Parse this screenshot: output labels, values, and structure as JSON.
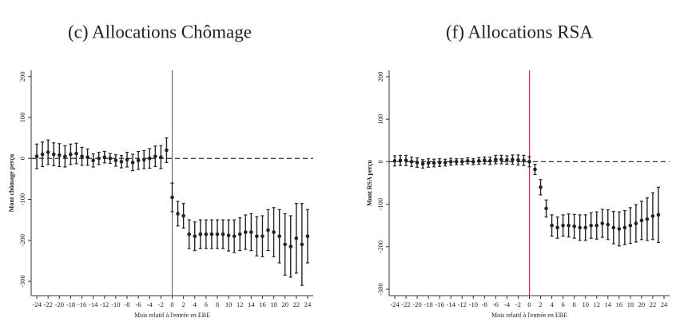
{
  "chart_data": [
    {
      "type": "scatter",
      "title": "(c) Allocations Chômage",
      "xlabel": "Mois relatif à l'entrée en EBE",
      "ylabel": "Mont chômage perçu",
      "x": [
        -24,
        -23,
        -22,
        -21,
        -20,
        -19,
        -18,
        -17,
        -16,
        -15,
        -14,
        -13,
        -12,
        -11,
        -10,
        -9,
        -8,
        -7,
        -6,
        -5,
        -4,
        -3,
        -2,
        -1,
        0,
        1,
        2,
        3,
        4,
        5,
        6,
        7,
        8,
        9,
        10,
        11,
        12,
        13,
        14,
        15,
        16,
        17,
        18,
        19,
        20,
        21,
        22,
        23,
        24
      ],
      "values": [
        5,
        10,
        15,
        10,
        8,
        5,
        10,
        12,
        5,
        3,
        -5,
        0,
        3,
        0,
        -5,
        -8,
        -3,
        -10,
        -5,
        -3,
        0,
        5,
        3,
        20,
        -95,
        -135,
        -140,
        -185,
        -190,
        -185,
        -185,
        -185,
        -185,
        -185,
        -188,
        -190,
        -185,
        -180,
        -180,
        -190,
        -190,
        -175,
        -180,
        -190,
        -210,
        -215,
        -195,
        -210,
        -190
      ],
      "errors": [
        30,
        30,
        30,
        28,
        28,
        26,
        25,
        25,
        22,
        20,
        16,
        15,
        14,
        12,
        14,
        15,
        18,
        20,
        22,
        22,
        24,
        25,
        28,
        30,
        35,
        30,
        30,
        35,
        35,
        35,
        35,
        35,
        35,
        35,
        38,
        40,
        40,
        42,
        45,
        48,
        50,
        50,
        60,
        65,
        75,
        75,
        85,
        100,
        65
      ],
      "color": "#222222",
      "xlim": [
        -25,
        25
      ],
      "xticks": [
        -24,
        -22,
        -20,
        -18,
        -16,
        -14,
        -12,
        -10,
        -8,
        -6,
        -4,
        -2,
        0,
        2,
        4,
        6,
        8,
        10,
        12,
        14,
        16,
        18,
        20,
        22,
        24
      ],
      "ylim": [
        -335,
        215
      ],
      "yticks": [
        200,
        100,
        0,
        -100,
        -200,
        -300
      ],
      "hline": 0,
      "vline": 0,
      "vline_color": "#d9243a"
    },
    {
      "type": "scatter",
      "title": "(f) Allocations RSA",
      "xlabel": "Mois relatif à l'entrée en EBE",
      "ylabel": "Mont RSA perçu",
      "x": [
        -24,
        -23,
        -22,
        -21,
        -20,
        -19,
        -18,
        -17,
        -16,
        -15,
        -14,
        -13,
        -12,
        -11,
        -10,
        -9,
        -8,
        -7,
        -6,
        -5,
        -4,
        -3,
        -2,
        -1,
        0,
        1,
        2,
        3,
        4,
        5,
        6,
        7,
        8,
        9,
        10,
        11,
        12,
        13,
        14,
        15,
        16,
        17,
        18,
        19,
        20,
        21,
        22,
        23
      ],
      "values": [
        2,
        3,
        3,
        0,
        -2,
        -5,
        -3,
        -3,
        -2,
        -2,
        0,
        0,
        0,
        2,
        0,
        2,
        3,
        2,
        5,
        5,
        4,
        5,
        4,
        3,
        0,
        -18,
        -60,
        -110,
        -150,
        -155,
        -150,
        -150,
        -152,
        -155,
        -155,
        -150,
        -150,
        -145,
        -148,
        -155,
        -158,
        -155,
        -150,
        -145,
        -138,
        -135,
        -128,
        -125
      ],
      "errors": [
        12,
        12,
        12,
        11,
        11,
        10,
        10,
        9,
        9,
        8,
        8,
        7,
        7,
        7,
        7,
        8,
        8,
        9,
        10,
        10,
        10,
        11,
        12,
        12,
        12,
        12,
        18,
        20,
        25,
        25,
        25,
        27,
        28,
        30,
        30,
        30,
        32,
        33,
        35,
        38,
        40,
        40,
        42,
        44,
        45,
        50,
        55,
        65
      ],
      "color": "#222222",
      "xlim": [
        -25,
        25
      ],
      "xticks": [
        -24,
        -22,
        -20,
        -18,
        -16,
        -14,
        -12,
        -10,
        -8,
        -6,
        -4,
        -2,
        0,
        2,
        4,
        6,
        8,
        10,
        12,
        14,
        16,
        18,
        20,
        22,
        24
      ],
      "ylim": [
        -315,
        215
      ],
      "yticks": [
        200,
        100,
        0,
        -100,
        -200,
        -300
      ],
      "hline": 0,
      "vline": 0,
      "vline_color": "#d9243a"
    }
  ]
}
